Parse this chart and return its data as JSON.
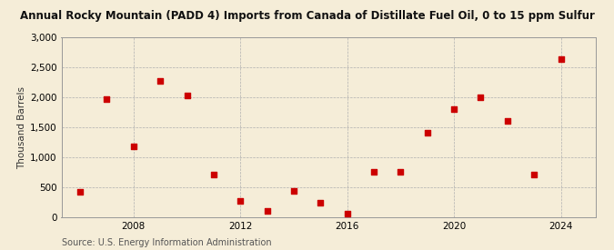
{
  "title": "Annual Rocky Mountain (PADD 4) Imports from Canada of Distillate Fuel Oil, 0 to 15 ppm Sulfur",
  "ylabel": "Thousand Barrels",
  "source": "Source: U.S. Energy Information Administration",
  "background_color": "#f5edd8",
  "plot_bg_color": "#f5edd8",
  "marker_color": "#cc0000",
  "marker_size": 25,
  "years": [
    2006,
    2007,
    2008,
    2009,
    2010,
    2011,
    2012,
    2013,
    2014,
    2015,
    2016,
    2017,
    2018,
    2019,
    2020,
    2021,
    2022,
    2023,
    2024
  ],
  "values": [
    430,
    1980,
    1190,
    2270,
    2040,
    710,
    270,
    115,
    450,
    250,
    65,
    760,
    760,
    1410,
    1810,
    2010,
    1610,
    710,
    2640
  ],
  "xlim": [
    2005.3,
    2025.3
  ],
  "ylim": [
    0,
    3000
  ],
  "xticks": [
    2008,
    2012,
    2016,
    2020,
    2024
  ],
  "yticks": [
    0,
    500,
    1000,
    1500,
    2000,
    2500,
    3000
  ],
  "ytick_labels": [
    "0",
    "500",
    "1,000",
    "1,500",
    "2,000",
    "2,500",
    "3,000"
  ],
  "title_fontsize": 8.5,
  "label_fontsize": 7.5,
  "tick_fontsize": 7.5,
  "source_fontsize": 7
}
